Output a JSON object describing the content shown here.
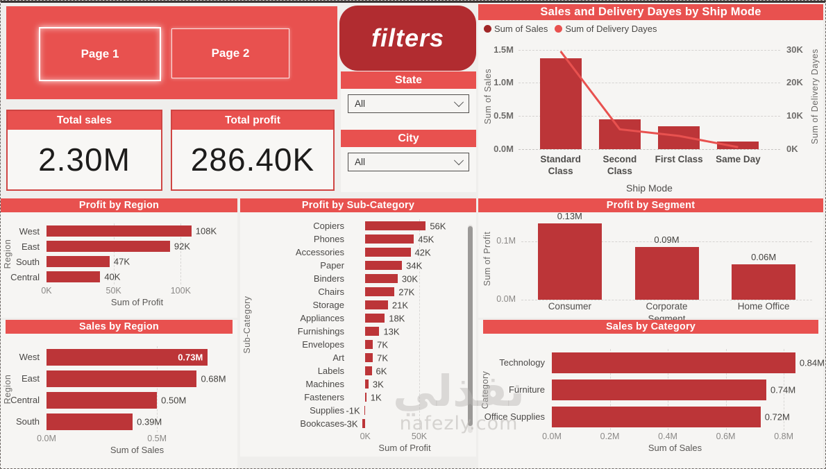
{
  "nav": {
    "page1_label": "Page 1",
    "page2_label": "Page 2"
  },
  "kpis": {
    "total_sales": {
      "title": "Total sales",
      "value": "2.30M"
    },
    "total_profit": {
      "title": "Total profit",
      "value": "286.40K"
    }
  },
  "filters": {
    "title": "filters",
    "state": {
      "label": "State",
      "value": "All"
    },
    "city": {
      "label": "City",
      "value": "All"
    }
  },
  "watermark": {
    "line1": "نفذلي",
    "line2": "nafezly.com"
  },
  "colors": {
    "accent_red": "#e8514f",
    "bar_red": "#bc3538",
    "dark_red_pill": "#b12c30",
    "legend_sales_dot": "#a02627",
    "line_red": "#e8514f",
    "panel_bg": "#f6f5f3"
  },
  "chart_data": [
    {
      "type": "combo-bar-line",
      "title": "Sales and Delivery Dayes by Ship Mode",
      "categories": [
        "Standard Class",
        "Second Class",
        "First Class",
        "Same Day"
      ],
      "x_display": [
        "Standard\nClass",
        "Second\nClass",
        "First Class",
        "Same Day"
      ],
      "series": [
        {
          "name": "Sum of Sales",
          "type": "bar",
          "axis": "left",
          "unit": "M",
          "values": [
            1.37,
            0.45,
            0.34,
            0.12
          ]
        },
        {
          "name": "Sum of Delivery Dayes",
          "type": "line",
          "axis": "right",
          "unit": "K",
          "values": [
            29.5,
            6,
            4,
            0.6
          ]
        }
      ],
      "left_axis": {
        "label": "Sum of Sales",
        "max": 1.6,
        "ticks": [
          {
            "v": 0,
            "label": "0.0M"
          },
          {
            "v": 0.5,
            "label": "0.5M"
          },
          {
            "v": 1.0,
            "label": "1.0M"
          },
          {
            "v": 1.5,
            "label": "1.5M"
          }
        ]
      },
      "right_axis": {
        "label": "Sum of Delivery Dayes",
        "max": 32,
        "ticks": [
          {
            "v": 0,
            "label": "0K"
          },
          {
            "v": 10,
            "label": "10K"
          },
          {
            "v": 20,
            "label": "20K"
          },
          {
            "v": 30,
            "label": "30K"
          }
        ]
      },
      "xlabel": "Ship Mode",
      "grid": "dashed-horizontal",
      "legend_position": "top-left"
    },
    {
      "type": "bar",
      "orientation": "horizontal",
      "title": "Profit by Region",
      "categories": [
        "West",
        "East",
        "South",
        "Central"
      ],
      "values": [
        108,
        92,
        47,
        40
      ],
      "value_labels": [
        "108K",
        "92K",
        "47K",
        "40K"
      ],
      "unit": "K",
      "xlabel": "Sum of Profit",
      "ylabel": "Region",
      "xmin": 0,
      "xmax": 135,
      "ticks": [
        {
          "v": 0,
          "label": "0K"
        },
        {
          "v": 50,
          "label": "50K"
        },
        {
          "v": 100,
          "label": "100K"
        }
      ]
    },
    {
      "type": "bar",
      "orientation": "horizontal",
      "title": "Profit by Sub-Category",
      "categories": [
        "Copiers",
        "Phones",
        "Accessories",
        "Paper",
        "Binders",
        "Chairs",
        "Storage",
        "Appliances",
        "Furnishings",
        "Envelopes",
        "Art",
        "Labels",
        "Machines",
        "Fasteners",
        "Supplies",
        "Bookcases"
      ],
      "values": [
        56,
        45,
        42,
        34,
        30,
        27,
        21,
        18,
        13,
        7,
        7,
        6,
        3,
        1,
        -1,
        -3
      ],
      "value_labels": [
        "56K",
        "45K",
        "42K",
        "34K",
        "30K",
        "27K",
        "21K",
        "18K",
        "13K",
        "7K",
        "7K",
        "6K",
        "3K",
        "1K",
        "-1K",
        "-3K"
      ],
      "unit": "K",
      "xlabel": "Sum of Profit",
      "ylabel": "Sub-Category",
      "xmin": -13,
      "xmax": 86,
      "ticks": [
        {
          "v": 0,
          "label": "0K"
        },
        {
          "v": 50,
          "label": "50K"
        }
      ],
      "scrollbar": true
    },
    {
      "type": "bar",
      "orientation": "vertical",
      "title": "Profit by Segment",
      "categories": [
        "Consumer",
        "Corporate",
        "Home Office"
      ],
      "values": [
        0.13,
        0.09,
        0.06
      ],
      "value_labels": [
        "0.13M",
        "0.09M",
        "0.06M"
      ],
      "unit": "M",
      "xlabel": "Segment",
      "ylabel": "Sum of Profit",
      "ymin": 0,
      "ymax": 0.14,
      "ticks": [
        {
          "v": 0,
          "label": "0.0M"
        },
        {
          "v": 0.1,
          "label": "0.1M"
        }
      ]
    },
    {
      "type": "bar",
      "orientation": "horizontal",
      "title": "Sales by Region",
      "categories": [
        "West",
        "East",
        "Central",
        "South"
      ],
      "values": [
        0.73,
        0.68,
        0.5,
        0.39
      ],
      "value_labels": [
        "0.73M",
        "0.68M",
        "0.50M",
        "0.39M"
      ],
      "value_label_inside": [
        true,
        false,
        false,
        false
      ],
      "unit": "M",
      "xlabel": "Sum of Sales",
      "ylabel": "Region",
      "xmin": 0,
      "xmax": 0.82,
      "ticks": [
        {
          "v": 0,
          "label": "0.0M"
        },
        {
          "v": 0.5,
          "label": "0.5M"
        }
      ]
    },
    {
      "type": "bar",
      "orientation": "horizontal",
      "title": "Sales by Category",
      "categories": [
        "Technology",
        "Furniture",
        "Office Supplies"
      ],
      "values": [
        0.84,
        0.74,
        0.72
      ],
      "value_labels": [
        "0.84M",
        "0.74M",
        "0.72M"
      ],
      "unit": "M",
      "xlabel": "Sum of Sales",
      "ylabel": "Category",
      "xmin": 0,
      "xmax": 0.85,
      "ticks": [
        {
          "v": 0,
          "label": "0.0M"
        },
        {
          "v": 0.2,
          "label": "0.2M"
        },
        {
          "v": 0.4,
          "label": "0.4M"
        },
        {
          "v": 0.6,
          "label": "0.6M"
        },
        {
          "v": 0.8,
          "label": "0.8M"
        }
      ]
    }
  ]
}
